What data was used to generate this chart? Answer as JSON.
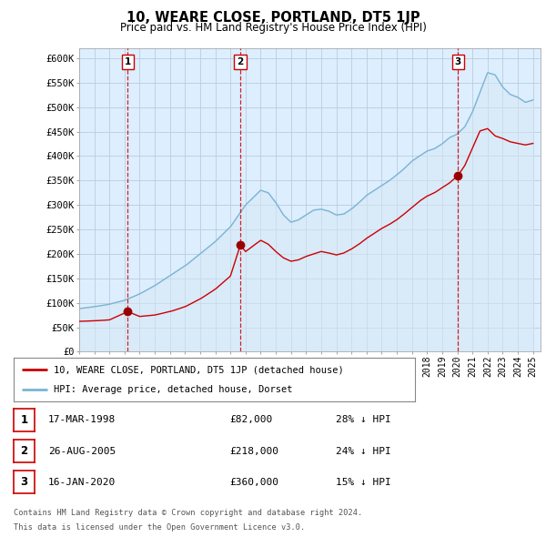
{
  "title": "10, WEARE CLOSE, PORTLAND, DT5 1JP",
  "subtitle": "Price paid vs. HM Land Registry's House Price Index (HPI)",
  "ylabel_ticks": [
    "£0",
    "£50K",
    "£100K",
    "£150K",
    "£200K",
    "£250K",
    "£300K",
    "£350K",
    "£400K",
    "£450K",
    "£500K",
    "£550K",
    "£600K"
  ],
  "ytick_values": [
    0,
    50000,
    100000,
    150000,
    200000,
    250000,
    300000,
    350000,
    400000,
    450000,
    500000,
    550000,
    600000
  ],
  "xmin": 1995.0,
  "xmax": 2025.5,
  "ymin": 0,
  "ymax": 620000,
  "purchases": [
    {
      "label": "1",
      "date": "17-MAR-1998",
      "year": 1998.21,
      "price": 82000,
      "pct": "28%",
      "dir": "↓"
    },
    {
      "label": "2",
      "date": "26-AUG-2005",
      "year": 2005.65,
      "price": 218000,
      "pct": "24%",
      "dir": "↓"
    },
    {
      "label": "3",
      "date": "16-JAN-2020",
      "year": 2020.05,
      "price": 360000,
      "pct": "15%",
      "dir": "↓"
    }
  ],
  "legend_line1": "10, WEARE CLOSE, PORTLAND, DT5 1JP (detached house)",
  "legend_line2": "HPI: Average price, detached house, Dorset",
  "footer1": "Contains HM Land Registry data © Crown copyright and database right 2024.",
  "footer2": "This data is licensed under the Open Government Licence v3.0.",
  "hpi_color": "#7ab3d4",
  "hpi_fill": "#d6e8f5",
  "price_color": "#cc0000",
  "bg_color": "#ffffff",
  "plot_bg_color": "#ddeeff",
  "grid_color": "#bbccdd",
  "vline_color": "#cc0000",
  "marker_color": "#990000",
  "hpi_anchors_x": [
    1995.0,
    1996.0,
    1997.0,
    1998.0,
    1999.0,
    2000.0,
    2001.0,
    2002.0,
    2003.0,
    2004.0,
    2005.0,
    2006.0,
    2007.0,
    2007.5,
    2008.0,
    2008.5,
    2009.0,
    2009.5,
    2010.0,
    2010.5,
    2011.0,
    2011.5,
    2012.0,
    2012.5,
    2013.0,
    2013.5,
    2014.0,
    2014.5,
    2015.0,
    2015.5,
    2016.0,
    2016.5,
    2017.0,
    2017.5,
    2018.0,
    2018.5,
    2019.0,
    2019.5,
    2020.0,
    2020.5,
    2021.0,
    2021.5,
    2022.0,
    2022.5,
    2023.0,
    2023.5,
    2024.0,
    2024.5,
    2025.0
  ],
  "hpi_anchors_y": [
    88000,
    92000,
    97000,
    105000,
    118000,
    135000,
    155000,
    175000,
    200000,
    225000,
    255000,
    300000,
    330000,
    325000,
    305000,
    280000,
    265000,
    270000,
    280000,
    290000,
    292000,
    288000,
    280000,
    282000,
    292000,
    305000,
    320000,
    330000,
    340000,
    350000,
    362000,
    375000,
    390000,
    400000,
    410000,
    415000,
    425000,
    438000,
    445000,
    460000,
    490000,
    530000,
    570000,
    565000,
    540000,
    525000,
    520000,
    510000,
    515000
  ],
  "price_anchors_x": [
    1995.0,
    1996.0,
    1997.0,
    1998.21,
    1999.0,
    2000.0,
    2001.0,
    2002.0,
    2003.0,
    2004.0,
    2005.0,
    2005.65,
    2006.0,
    2007.0,
    2007.5,
    2008.0,
    2008.5,
    2009.0,
    2009.5,
    2010.0,
    2010.5,
    2011.0,
    2011.5,
    2012.0,
    2012.5,
    2013.0,
    2013.5,
    2014.0,
    2014.5,
    2015.0,
    2015.5,
    2016.0,
    2016.5,
    2017.0,
    2017.5,
    2018.0,
    2018.5,
    2019.0,
    2019.5,
    2020.05,
    2020.5,
    2021.0,
    2021.5,
    2022.0,
    2022.5,
    2023.0,
    2023.5,
    2024.0,
    2024.5,
    2025.0
  ],
  "price_anchors_y": [
    62000,
    63000,
    65000,
    82000,
    72000,
    75000,
    82000,
    92000,
    108000,
    128000,
    155000,
    218000,
    205000,
    228000,
    220000,
    205000,
    192000,
    185000,
    188000,
    195000,
    200000,
    205000,
    202000,
    198000,
    202000,
    210000,
    220000,
    232000,
    242000,
    252000,
    260000,
    270000,
    282000,
    295000,
    308000,
    318000,
    325000,
    335000,
    345000,
    360000,
    380000,
    415000,
    450000,
    455000,
    440000,
    435000,
    428000,
    425000,
    422000,
    425000
  ]
}
